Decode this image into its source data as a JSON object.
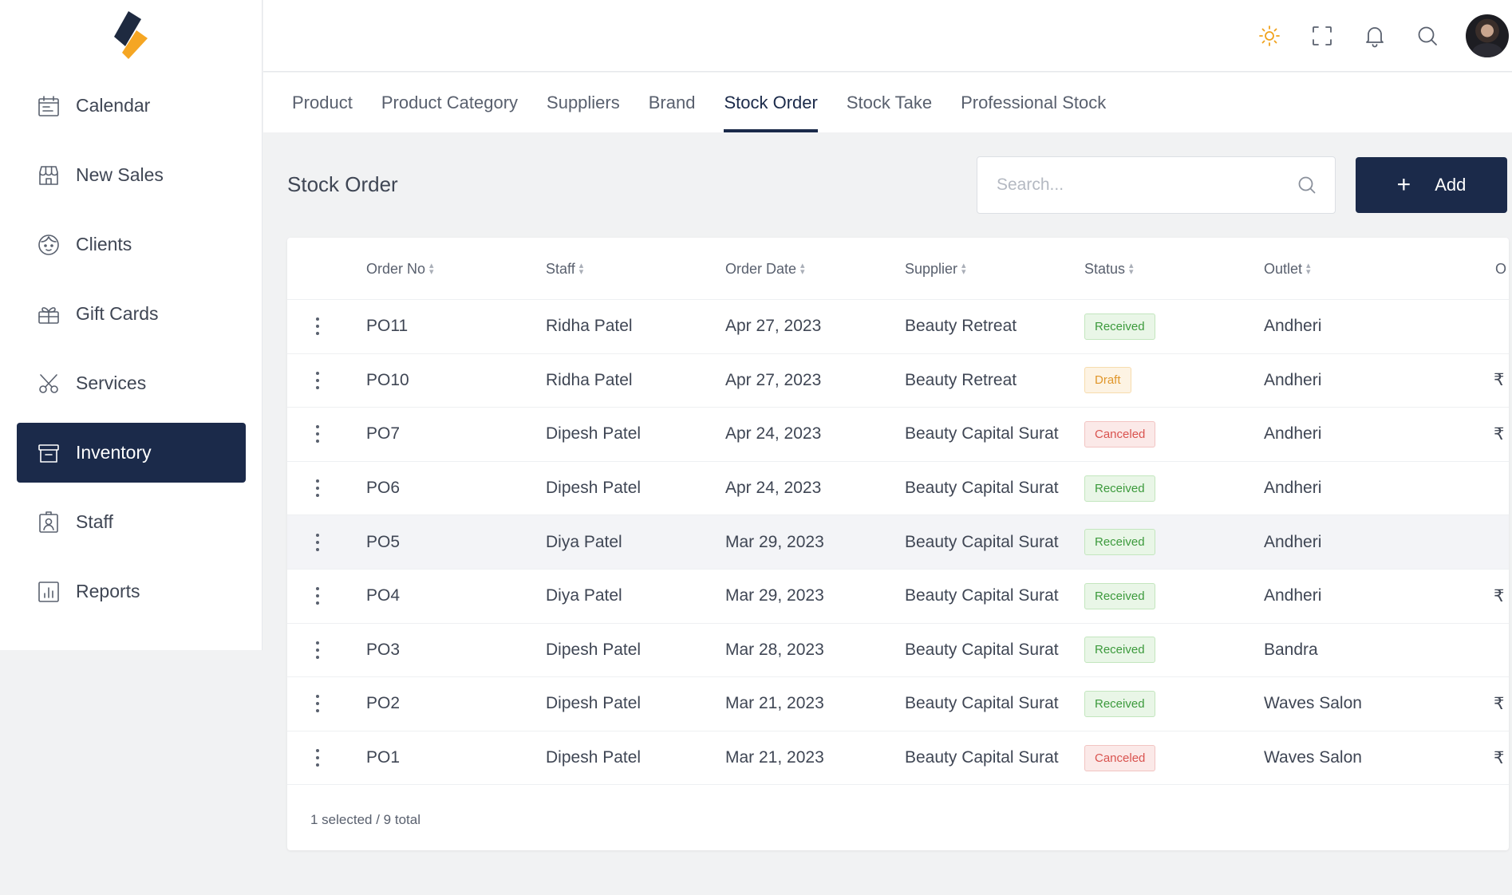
{
  "sidebar": {
    "items": [
      {
        "label": "Calendar",
        "icon": "calendar-icon",
        "active": false
      },
      {
        "label": "New Sales",
        "icon": "shop-icon",
        "active": false
      },
      {
        "label": "Clients",
        "icon": "clients-icon",
        "active": false
      },
      {
        "label": "Gift Cards",
        "icon": "gift-icon",
        "active": false
      },
      {
        "label": "Services",
        "icon": "scissors-icon",
        "active": false
      },
      {
        "label": "Inventory",
        "icon": "archive-icon",
        "active": true
      },
      {
        "label": "Staff",
        "icon": "badge-icon",
        "active": false
      },
      {
        "label": "Reports",
        "icon": "chart-icon",
        "active": false
      }
    ]
  },
  "header": {
    "icons": [
      "sun-icon",
      "fullscreen-icon",
      "bell-icon",
      "search-icon"
    ]
  },
  "tabs": [
    {
      "label": "Product",
      "active": false
    },
    {
      "label": "Product Category",
      "active": false
    },
    {
      "label": "Suppliers",
      "active": false
    },
    {
      "label": "Brand",
      "active": false
    },
    {
      "label": "Stock Order",
      "active": true
    },
    {
      "label": "Stock Take",
      "active": false
    },
    {
      "label": "Professional Stock",
      "active": false
    }
  ],
  "page": {
    "title": "Stock Order",
    "search_placeholder": "Search...",
    "add_label": "Add"
  },
  "table": {
    "columns": [
      "Order No",
      "Staff",
      "Order Date",
      "Supplier",
      "Status",
      "Outlet",
      "O"
    ],
    "rows": [
      {
        "order_no": "PO11",
        "staff": "Ridha Patel",
        "date": "Apr 27, 2023",
        "supplier": "Beauty Retreat",
        "status": "Received",
        "status_type": "received",
        "outlet": "Andheri",
        "trail": ""
      },
      {
        "order_no": "PO10",
        "staff": "Ridha Patel",
        "date": "Apr 27, 2023",
        "supplier": "Beauty Retreat",
        "status": "Draft",
        "status_type": "draft",
        "outlet": "Andheri",
        "trail": "₹"
      },
      {
        "order_no": "PO7",
        "staff": "Dipesh Patel",
        "date": "Apr 24, 2023",
        "supplier": "Beauty Capital Surat",
        "status": "Canceled",
        "status_type": "canceled",
        "outlet": "Andheri",
        "trail": "₹"
      },
      {
        "order_no": "PO6",
        "staff": "Dipesh Patel",
        "date": "Apr 24, 2023",
        "supplier": "Beauty Capital Surat",
        "status": "Received",
        "status_type": "received",
        "outlet": "Andheri",
        "trail": ""
      },
      {
        "order_no": "PO5",
        "staff": "Diya Patel",
        "date": "Mar 29, 2023",
        "supplier": "Beauty Capital Surat",
        "status": "Received",
        "status_type": "received",
        "outlet": "Andheri",
        "trail": "",
        "selected": true
      },
      {
        "order_no": "PO4",
        "staff": "Diya Patel",
        "date": "Mar 29, 2023",
        "supplier": "Beauty Capital Surat",
        "status": "Received",
        "status_type": "received",
        "outlet": "Andheri",
        "trail": "₹"
      },
      {
        "order_no": "PO3",
        "staff": "Dipesh Patel",
        "date": "Mar 28, 2023",
        "supplier": "Beauty Capital Surat",
        "status": "Received",
        "status_type": "received",
        "outlet": "Bandra",
        "trail": ""
      },
      {
        "order_no": "PO2",
        "staff": "Dipesh Patel",
        "date": "Mar 21, 2023",
        "supplier": "Beauty Capital Surat",
        "status": "Received",
        "status_type": "received",
        "outlet": "Waves Salon",
        "trail": "₹"
      },
      {
        "order_no": "PO1",
        "staff": "Dipesh Patel",
        "date": "Mar 21, 2023",
        "supplier": "Beauty Capital Surat",
        "status": "Canceled",
        "status_type": "canceled",
        "outlet": "Waves Salon",
        "trail": "₹"
      }
    ],
    "footer": "1 selected / 9 total"
  },
  "colors": {
    "primary": "#1b2a4a",
    "accent": "#f0a21c",
    "received": "#3c9a3c",
    "draft": "#e0962a",
    "canceled": "#d9534f"
  }
}
